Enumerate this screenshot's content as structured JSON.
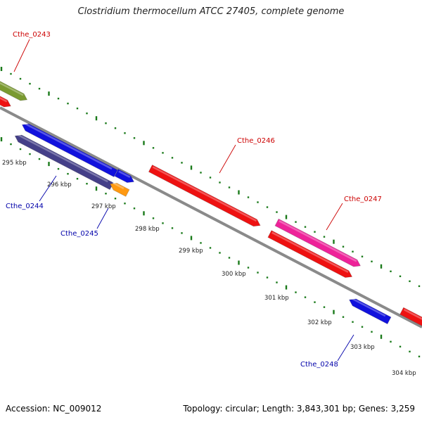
{
  "title": "Clostridium thermocellum ATCC 27405, complete genome",
  "footer": {
    "accession": "Accession: NC_009012",
    "summary": "Topology: circular; Length: 3,843,301 bp; Genes: 3,259"
  },
  "colors": {
    "backbone": "#8a8a8a",
    "tick": "#1a7a1a",
    "label_red": "#cc0000",
    "label_blue": "#0000aa",
    "scale_label": "#222222"
  },
  "scale_labels": [
    "295 kbp",
    "296 kbp",
    "297 kbp",
    "298 kbp",
    "299 kbp",
    "300 kbp",
    "301 kbp",
    "302 kbp",
    "303 kbp",
    "304 kbp"
  ],
  "genes": [
    {
      "id": "Cthe_0243",
      "label": "Cthe_0243",
      "color": "#7a9a30",
      "strand": "+"
    },
    {
      "id": "gene_red_a",
      "label": "",
      "color": "#ee1111",
      "strand": "+"
    },
    {
      "id": "Cthe_0244",
      "label": "Cthe_0244",
      "color": "#443f88",
      "strand": "-"
    },
    {
      "id": "gene_blue_a",
      "label": "",
      "color": "#1111dd",
      "strand": "-"
    },
    {
      "id": "gene_blue_b",
      "label": "",
      "color": "#1111dd",
      "strand": "+"
    },
    {
      "id": "Cthe_0245",
      "label": "Cthe_0245",
      "color": "#ff9911",
      "strand": "-"
    },
    {
      "id": "Cthe_0246",
      "label": "Cthe_0246",
      "color": "#ee1111",
      "strand": "+"
    },
    {
      "id": "Cthe_0247",
      "label": "Cthe_0247",
      "color": "#ee2299",
      "strand": "+"
    },
    {
      "id": "gene_red_b",
      "label": "",
      "color": "#ee1111",
      "strand": "+"
    },
    {
      "id": "Cthe_0248",
      "label": "Cthe_0248",
      "color": "#1111dd",
      "strand": "-"
    },
    {
      "id": "gene_red_c",
      "label": "",
      "color": "#ee1111",
      "strand": "+"
    }
  ]
}
